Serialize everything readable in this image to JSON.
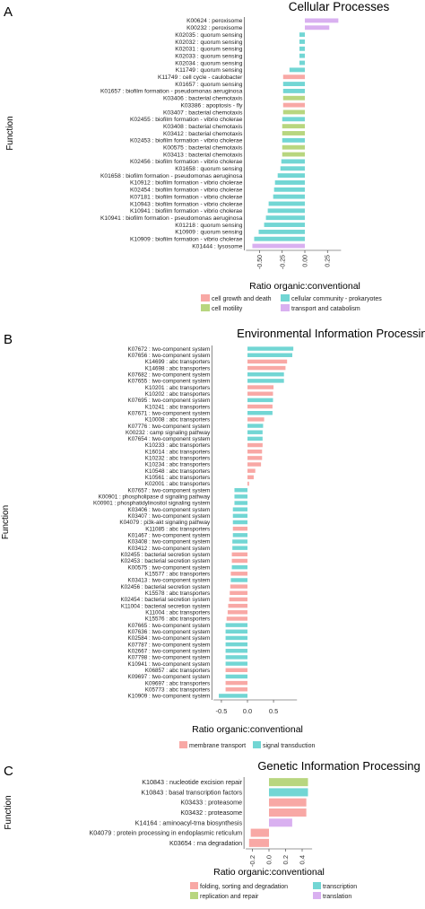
{
  "chart_data": [
    {
      "panel": "A",
      "type": "bar",
      "orientation": "horizontal",
      "title": "Cellular Processes",
      "xlabel": "Ratio organic:conventional",
      "ylabel": "Function",
      "xlim": [
        -0.65,
        0.4
      ],
      "xticks": [
        -0.5,
        -0.25,
        0.0,
        0.25
      ],
      "xtick_labels": [
        "-0.50",
        "-0.25",
        "0.00",
        "0.25"
      ],
      "legend_position": "bottom",
      "legend": [
        {
          "label": "cell growth and death",
          "color": "#F8A8A5"
        },
        {
          "label": "cellular community - prokaryotes",
          "color": "#72D6D4"
        },
        {
          "label": "cell motility",
          "color": "#B8D67F"
        },
        {
          "label": "transport and catabolism",
          "color": "#D9B0F0"
        }
      ],
      "categories": [
        "K00624 : peroxisome",
        "K00232 : peroxisome",
        "K02035 : quorum sensing",
        "K02032 : quorum sensing",
        "K02031 : quorum sensing",
        "K02033 : quorum sensing",
        "K02034 : quorum sensing",
        "K11749 : quorum sensing",
        "K11749 : cell cycle - caulobacter",
        "K01657 : quorum sensing",
        "K01657 : biofilm formation - pseudomonas aeruginosa",
        "K03406 : bacterial chemotaxis",
        "K03386 : apoptosis - fly",
        "K03407 : bacterial chemotaxis",
        "K02455 : biofilm formation - vibrio cholerae",
        "K03408 : bacterial chemotaxis",
        "K03412 : bacterial chemotaxis",
        "K02453 : biofilm formation - vibrio cholerae",
        "K00575 : bacterial chemotaxis",
        "K03413 : bacterial chemotaxis",
        "K02456 : biofilm formation - vibrio cholerae",
        "K01658 : quorum sensing",
        "K01658 : biofilm formation - pseudomonas aeruginosa",
        "K10912 : biofilm formation - vibrio cholerae",
        "K02454 : biofilm formation - vibrio cholerae",
        "K07181 : biofilm formation - vibrio cholerae",
        "K10943 : biofilm formation - vibrio cholerae",
        "K10941 : biofilm formation - vibrio cholerae",
        "K10941 : biofilm formation - pseudomonas aeruginosa",
        "K01218 : quorum sensing",
        "K10909 : quorum sensing",
        "K10909 : biofilm formation - vibrio cholerae",
        "K01444 : lysosome"
      ],
      "values": [
        0.37,
        0.27,
        -0.06,
        -0.06,
        -0.06,
        -0.06,
        -0.06,
        -0.17,
        -0.24,
        -0.24,
        -0.24,
        -0.24,
        -0.24,
        -0.24,
        -0.25,
        -0.25,
        -0.25,
        -0.25,
        -0.25,
        -0.25,
        -0.26,
        -0.27,
        -0.3,
        -0.33,
        -0.34,
        -0.35,
        -0.4,
        -0.41,
        -0.43,
        -0.45,
        -0.51,
        -0.56,
        -0.58
      ],
      "groups": [
        "transport and catabolism",
        "transport and catabolism",
        "cellular community - prokaryotes",
        "cellular community - prokaryotes",
        "cellular community - prokaryotes",
        "cellular community - prokaryotes",
        "cellular community - prokaryotes",
        "cellular community - prokaryotes",
        "cell growth and death",
        "cellular community - prokaryotes",
        "cellular community - prokaryotes",
        "cell motility",
        "cell growth and death",
        "cell motility",
        "cellular community - prokaryotes",
        "cell motility",
        "cell motility",
        "cellular community - prokaryotes",
        "cell motility",
        "cell motility",
        "cellular community - prokaryotes",
        "cellular community - prokaryotes",
        "cellular community - prokaryotes",
        "cellular community - prokaryotes",
        "cellular community - prokaryotes",
        "cellular community - prokaryotes",
        "cellular community - prokaryotes",
        "cellular community - prokaryotes",
        "cellular community - prokaryotes",
        "cellular community - prokaryotes",
        "cellular community - prokaryotes",
        "cellular community - prokaryotes",
        "transport and catabolism"
      ]
    },
    {
      "panel": "B",
      "type": "bar",
      "orientation": "horizontal",
      "title": "Environmental Information Processing",
      "xlabel": "Ratio organic:conventional",
      "ylabel": "Function",
      "xlim": [
        -0.65,
        0.95
      ],
      "xticks": [
        -0.5,
        0.0,
        0.5
      ],
      "xtick_labels": [
        "-0.5",
        "0.0",
        "0.5"
      ],
      "legend_position": "bottom",
      "legend": [
        {
          "label": "membrane transport",
          "color": "#F8A8A5"
        },
        {
          "label": "signal transduction",
          "color": "#72D6D4"
        }
      ],
      "categories": [
        "K07672 : two-component system",
        "K07656 : two-component system",
        "K14699 : abc transporters",
        "K14698 : abc transporters",
        "K07682 : two-component system",
        "K07655 : two-component system",
        "K10201 : abc transporters",
        "K10202 : abc transporters",
        "K07695 : two-component system",
        "K10241 : abc transporters",
        "K07671 : two-component system",
        "K10008 : abc transporters",
        "K07776 : two-component system",
        "K00232 : camp signaling pathway",
        "K07654 : two-component system",
        "K10233 : abc transporters",
        "K16014 : abc transporters",
        "K10232 : abc transporters",
        "K10234 : abc transporters",
        "K10548 : abc transporters",
        "K10561 : abc transporters",
        "K02001 : abc transporters",
        "K07657 : two-component system",
        "K00901 : phospholipase d signaling pathway",
        "K00901 : phosphatidylinositol signaling system",
        "K03406 : two-component system",
        "K03407 : two-component system",
        "K04079 : pi3k-akt signaling pathway",
        "K11085 : abc transporters",
        "K01467 : two-component system",
        "K03408 : two-component system",
        "K03412 : two-component system",
        "K02455 : bacterial secretion system",
        "K02453 : bacterial secretion system",
        "K00575 : two-component system",
        "K15577 : abc transporters",
        "K03413 : two-component system",
        "K02456 : bacterial secretion system",
        "K15578 : abc transporters",
        "K02454 : bacterial secretion system",
        "K11004 : bacterial secretion system",
        "K11004 : abc transporters",
        "K15576 : abc transporters",
        "K07665 : two-component system",
        "K07636 : two-component system",
        "K02584 : two-component system",
        "K07787 : two-component system",
        "K02667 : two-component system",
        "K07798 : two-component system",
        "K10941 : two-component system",
        "K06857 : abc transporters",
        "K09697 : two-component system",
        "K09697 : abc transporters",
        "K05773 : abc transporters",
        "K10909 : two-component system"
      ],
      "values": [
        0.88,
        0.86,
        0.76,
        0.73,
        0.7,
        0.7,
        0.5,
        0.49,
        0.49,
        0.48,
        0.48,
        0.32,
        0.3,
        0.29,
        0.29,
        0.29,
        0.28,
        0.28,
        0.26,
        0.15,
        0.12,
        0.03,
        -0.25,
        -0.25,
        -0.25,
        -0.28,
        -0.28,
        -0.28,
        -0.28,
        -0.28,
        -0.29,
        -0.29,
        -0.3,
        -0.3,
        -0.3,
        -0.32,
        -0.32,
        -0.33,
        -0.34,
        -0.35,
        -0.37,
        -0.38,
        -0.4,
        -0.42,
        -0.42,
        -0.42,
        -0.42,
        -0.42,
        -0.42,
        -0.42,
        -0.42,
        -0.42,
        -0.42,
        -0.42,
        -0.55
      ],
      "groups": [
        "signal transduction",
        "signal transduction",
        "membrane transport",
        "membrane transport",
        "signal transduction",
        "signal transduction",
        "membrane transport",
        "membrane transport",
        "signal transduction",
        "membrane transport",
        "signal transduction",
        "membrane transport",
        "signal transduction",
        "signal transduction",
        "signal transduction",
        "membrane transport",
        "membrane transport",
        "membrane transport",
        "membrane transport",
        "membrane transport",
        "membrane transport",
        "membrane transport",
        "signal transduction",
        "signal transduction",
        "signal transduction",
        "signal transduction",
        "signal transduction",
        "signal transduction",
        "membrane transport",
        "signal transduction",
        "signal transduction",
        "signal transduction",
        "membrane transport",
        "membrane transport",
        "signal transduction",
        "membrane transport",
        "signal transduction",
        "membrane transport",
        "membrane transport",
        "membrane transport",
        "membrane transport",
        "membrane transport",
        "membrane transport",
        "signal transduction",
        "signal transduction",
        "signal transduction",
        "signal transduction",
        "signal transduction",
        "signal transduction",
        "signal transduction",
        "membrane transport",
        "signal transduction",
        "membrane transport",
        "membrane transport",
        "signal transduction"
      ]
    },
    {
      "panel": "C",
      "type": "bar",
      "orientation": "horizontal",
      "title": "Genetic Information Processing",
      "xlabel": "Ratio organic:conventional",
      "ylabel": "Function",
      "xlim": [
        -0.28,
        0.52
      ],
      "xticks": [
        -0.2,
        0.0,
        0.2,
        0.4
      ],
      "xtick_labels": [
        "-0.2",
        "0.0",
        "0.2",
        "0.4"
      ],
      "legend_position": "bottom",
      "legend": [
        {
          "label": "folding, sorting and degradation",
          "color": "#F8A8A5"
        },
        {
          "label": "transcription",
          "color": "#72D6D4"
        },
        {
          "label": "replication and repair",
          "color": "#B8D67F"
        },
        {
          "label": "translation",
          "color": "#D9B0F0"
        }
      ],
      "categories": [
        "K10843 : nucleotide excision repair",
        "K10843 : basal transcription factors",
        "K03433 : proteasome",
        "K03432 : proteasome",
        "K14164 : aminoacyl-trna biosynthesis",
        "K04079 : protein processing in endoplasmic reticulum",
        "K03654 : rna degradation"
      ],
      "values": [
        0.47,
        0.47,
        0.45,
        0.45,
        0.28,
        -0.22,
        -0.24
      ],
      "groups": [
        "replication and repair",
        "transcription",
        "folding, sorting and degradation",
        "folding, sorting and degradation",
        "translation",
        "folding, sorting and degradation",
        "folding, sorting and degradation"
      ]
    }
  ],
  "panel_letters": [
    "A",
    "B",
    "C"
  ]
}
